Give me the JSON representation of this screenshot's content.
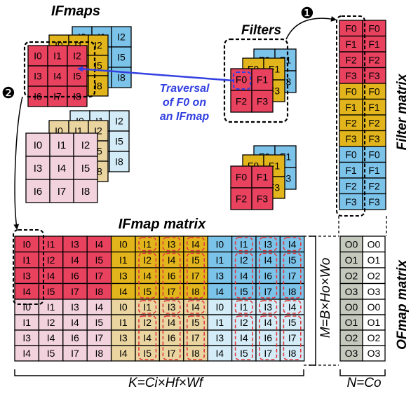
{
  "labels": {
    "ifmaps": "IFmaps",
    "filters": "Filters",
    "step1": "❶",
    "step2": "❷",
    "traversal": [
      "Traversal",
      "of F0 on",
      "an IFmap"
    ],
    "filter_matrix": "Filter matrix",
    "ifmap_matrix": "IFmap matrix",
    "ofmap_matrix": "OFmap matrix",
    "dim_m": "M=B×Ho×Wo",
    "dim_k": "K=Ci×Hf×Wf",
    "dim_n": "N=Co"
  },
  "colors": {
    "red": "#e8425f",
    "yellow": "#e3b51c",
    "blue": "#7cc3ea",
    "pink": "#f2d2dd",
    "tan": "#ead5a0",
    "lightblue": "#d4ecf7",
    "gray": "#c4c8bd",
    "arrow": "#3340e0",
    "dash": "#e0393e"
  },
  "ifmap_cells": [
    "I0",
    "I1",
    "I2",
    "I3",
    "I4",
    "I5",
    "I6",
    "I7",
    "I8"
  ],
  "filter_cells": [
    "F0",
    "F1",
    "F2",
    "F3"
  ],
  "ifmap_matrix": {
    "row_groups": [
      [
        "I0",
        "I1",
        "I3",
        "I4"
      ],
      [
        "I1",
        "I2",
        "I4",
        "I5"
      ],
      [
        "I3",
        "I4",
        "I6",
        "I7"
      ],
      [
        "I4",
        "I5",
        "I7",
        "I8"
      ]
    ]
  },
  "filter_matrix": {
    "rows": [
      "F0",
      "F1",
      "F2",
      "F3",
      "F0",
      "F1",
      "F2",
      "F3",
      "F0",
      "F1",
      "F2",
      "F3"
    ]
  },
  "ofmap_matrix": {
    "rows": [
      "O0",
      "O1",
      "O2",
      "O3",
      "O0",
      "O1",
      "O2",
      "O3"
    ]
  }
}
